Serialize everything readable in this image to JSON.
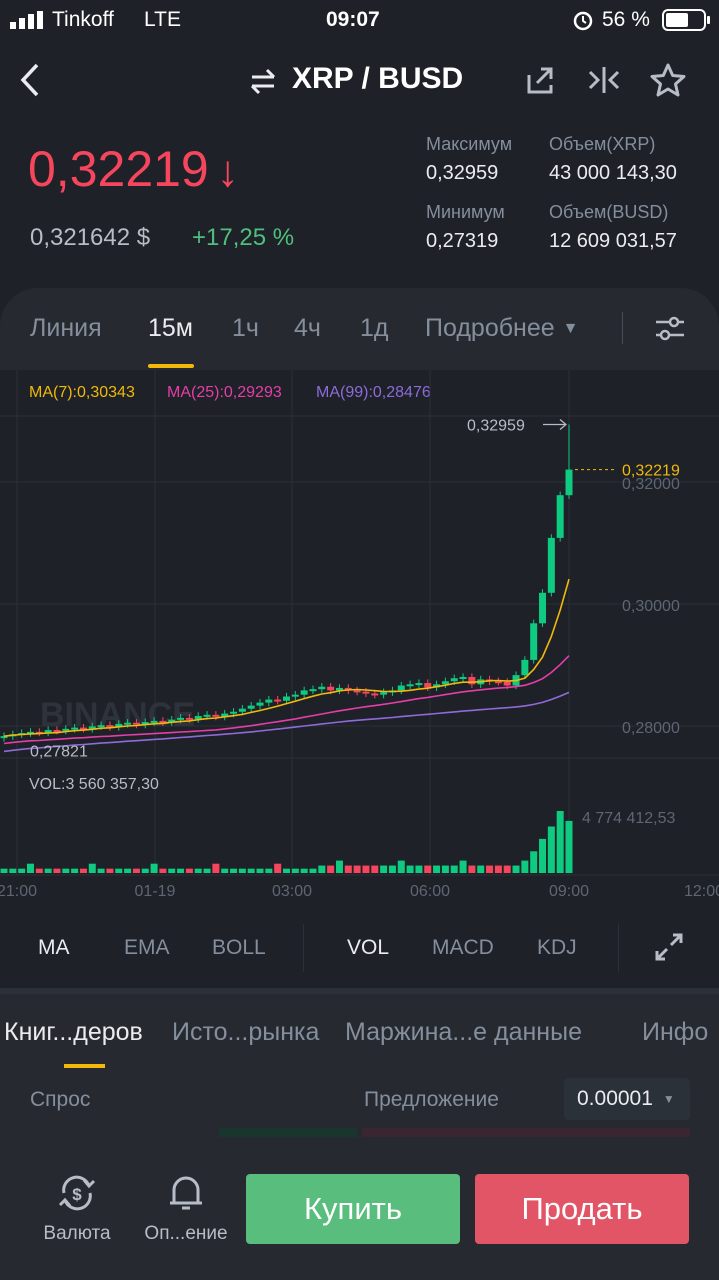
{
  "status_bar": {
    "carrier": "Tinkoff",
    "network": "LTE",
    "time": "09:07",
    "battery": "56 %"
  },
  "header": {
    "pair": "XRP / BUSD"
  },
  "ticker": {
    "price": "0,32219",
    "price_usd": "0,321642 $",
    "change": "+17,25 %",
    "high_label": "Максимум",
    "high": "0,32959",
    "low_label": "Минимум",
    "low": "0,27319",
    "vol_base_label": "Объем(XRP)",
    "vol_base": "43 000 143,30",
    "vol_quote_label": "Объем(BUSD)",
    "vol_quote": "12 609 031,57"
  },
  "timeframes": [
    "Линия",
    "15м",
    "1ч",
    "4ч",
    "1д"
  ],
  "more_label": "Подробнее",
  "chart": {
    "ma7": "MA(7):0,30343",
    "ma25": "MA(25):0,29293",
    "ma99": "MA(99):0,28476",
    "high_marker": "0,32959",
    "low_marker": "0,27821",
    "last_price": "0,32219",
    "y_ticks": [
      "0,32000",
      "0,30000",
      "0,28000"
    ],
    "vol_label": "VOL:3 560 357,30",
    "vol_max": "4 774 412,53",
    "x_ticks": [
      "21:00",
      "01-19",
      "03:00",
      "06:00",
      "09:00",
      "12:00"
    ],
    "watermark": "BINANCE",
    "colors": {
      "up": "#0ECB81",
      "down": "#F6465D",
      "ma7": "#F0B90B",
      "ma25": "#E53EA9",
      "ma99": "#8E6BD8"
    }
  },
  "indicators": {
    "main": [
      "MA",
      "EMA",
      "BOLL"
    ],
    "sub": [
      "VOL",
      "MACD",
      "KDJ"
    ]
  },
  "book_tabs": [
    "Книг...деров",
    "Исто...рынка",
    "Маржина...е данные",
    "Инфо"
  ],
  "book": {
    "bid_label": "Спрос",
    "ask_label": "Предложение",
    "precision": "0.00001"
  },
  "bottom": {
    "currency_label": "Валюта",
    "alerts_label": "Оп...ение",
    "buy": "Купить",
    "sell": "Продать"
  }
}
